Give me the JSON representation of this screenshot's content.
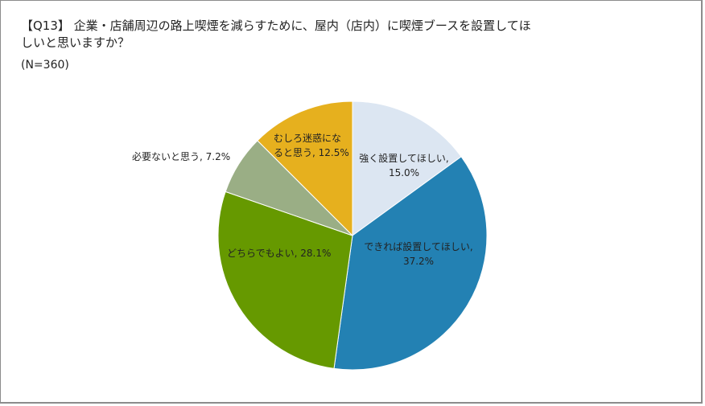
{
  "chart_data": {
    "type": "pie",
    "title": "【Q13】企業・店舗周辺の路上喫煙を減らすために、屋内（店内）に喫煙ブースを設置してほしいと思いますか？",
    "subtitle": "(N=360)",
    "start_angle_deg": 0,
    "direction": "clockwise",
    "legend": "none (data labels with category name and percent)",
    "slices": [
      {
        "label": "強く設置してほしい",
        "value": 15.0,
        "color": "#dce6f2"
      },
      {
        "label": "できれば設置してほしい",
        "value": 37.2,
        "color": "#2381b3"
      },
      {
        "label": "どちらでもよい",
        "value": 28.1,
        "color": "#669900"
      },
      {
        "label": "必要ないと思う",
        "value": 7.2,
        "color": "#9aae85"
      },
      {
        "label": "むしろ迷惑になると思う",
        "value": 12.5,
        "color": "#e6b01e"
      }
    ]
  },
  "header": {
    "title_line1": "【Q13】 企業・店舗周辺の路上喫煙を減らすために、屋内（店内）に喫煙ブースを設置してほ",
    "title_line2": "しいと思いますか？",
    "subtitle": "(N=360)"
  },
  "labels": {
    "s0_line1": "強く設置してほしい,",
    "s0_line2": "15.0%",
    "s1_line1": "できれば設置してほしい,",
    "s1_line2": "37.2%",
    "s2_line1": "どちらでもよい, 28.1%",
    "s3_line1": "必要ないと思う, 7.2%",
    "s4_line1": "むしろ迷惑にな",
    "s4_line2": "ると思う, 12.5%"
  }
}
